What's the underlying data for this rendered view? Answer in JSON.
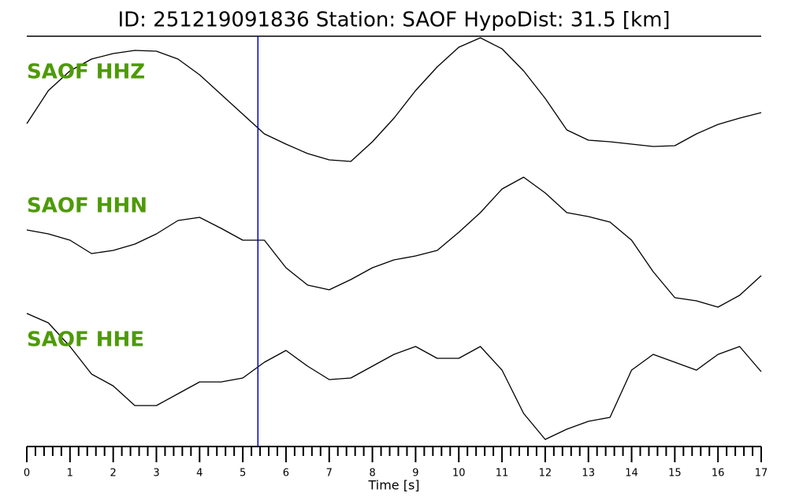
{
  "chart_data": {
    "type": "line",
    "title": "ID: 251219091836   Station: SAOF   HypoDist:    31.5 [km]",
    "xlabel": "Time [s]",
    "xlim": [
      0,
      17
    ],
    "xticks": [
      0,
      1,
      2,
      3,
      4,
      5,
      6,
      7,
      8,
      9,
      10,
      11,
      12,
      13,
      14,
      15,
      16,
      17
    ],
    "xminor_per_major": 5,
    "ylim": [
      -85,
      85
    ],
    "label_color": "#4e9a06",
    "marker_x": 5.35,
    "marker_color": "#0000cc",
    "x": [
      0,
      0.5,
      1,
      1.5,
      2,
      2.5,
      3,
      3.5,
      4,
      4.5,
      5,
      5.5,
      6,
      6.5,
      7,
      7.5,
      8,
      8.5,
      9,
      9.5,
      10,
      10.5,
      11,
      11.5,
      12,
      12.5,
      13,
      13.5,
      14,
      14.5,
      15,
      15.5,
      16,
      16.5,
      17
    ],
    "series": [
      {
        "name": "SAOF HHZ",
        "color": "#000000",
        "values": [
          -27,
          15,
          40,
          55,
          62,
          66,
          65,
          55,
          35,
          10,
          -15,
          -40,
          -53,
          -65,
          -73,
          -75,
          -50,
          -20,
          15,
          45,
          70,
          82,
          68,
          40,
          5,
          -35,
          -48,
          -50,
          -53,
          -56,
          -55,
          -40,
          -28,
          -20,
          -13
        ]
      },
      {
        "name": "SAOF HHN",
        "color": "#000000",
        "values": [
          8,
          3,
          -5,
          -22,
          -18,
          -10,
          3,
          20,
          24,
          10,
          -5,
          -5,
          -40,
          -62,
          -68,
          -55,
          -40,
          -30,
          -25,
          -18,
          5,
          30,
          60,
          75,
          55,
          30,
          25,
          18,
          -5,
          -45,
          -78,
          -82,
          -90,
          -75,
          -50
        ]
      },
      {
        "name": "SAOF HHE",
        "color": "#000000",
        "values": [
          72,
          60,
          30,
          -5,
          -20,
          -45,
          -45,
          -30,
          -15,
          -15,
          -10,
          10,
          25,
          5,
          -12,
          -10,
          5,
          20,
          30,
          15,
          15,
          30,
          0,
          -55,
          -88,
          -75,
          -65,
          -60,
          0,
          20,
          10,
          0,
          20,
          30,
          -2
        ]
      }
    ]
  }
}
